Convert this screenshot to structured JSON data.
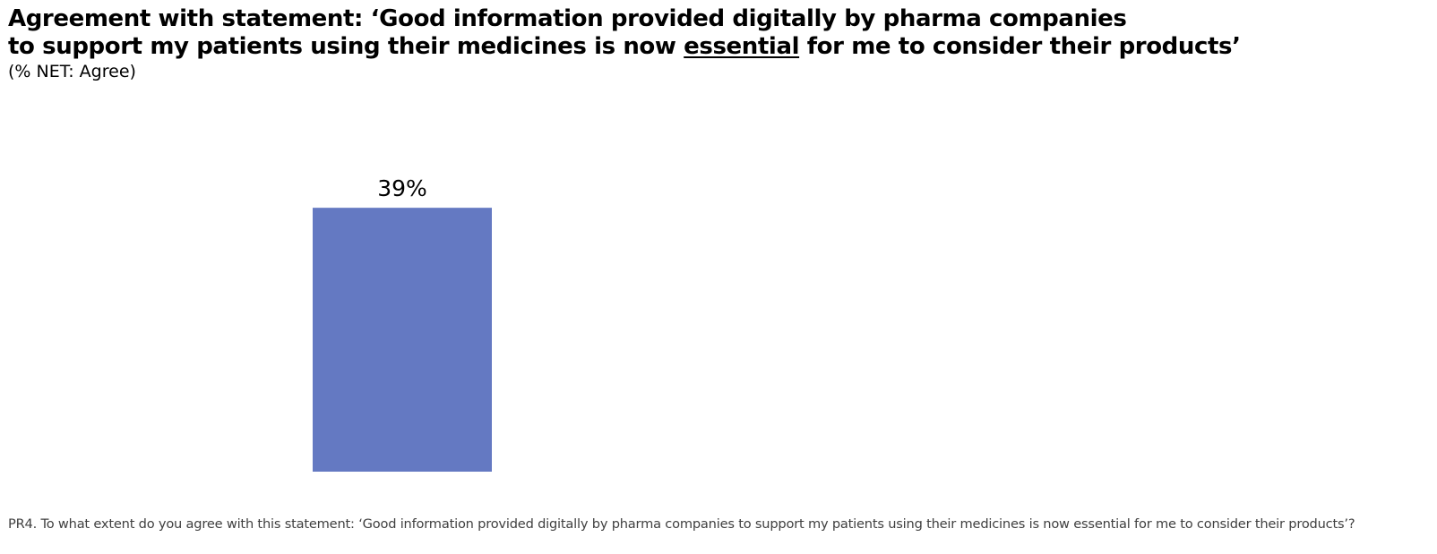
{
  "chart_data": {
    "type": "bar",
    "title_line1": "Agreement with statement: ‘Good information provided digitally by pharma companies",
    "title_line2_before": "to support my patients using their medicines is now ",
    "title_line2_emphasis": "essential",
    "title_line2_after": " for me to consider their products’",
    "subtitle": "(% NET: Agree)",
    "categories": [
      ""
    ],
    "values": [
      39
    ],
    "data_labels": [
      "39%"
    ],
    "ylim": [
      0,
      100
    ],
    "grid": false,
    "legend": "none",
    "bar_color": "#6479c2",
    "footnote": "PR4. To what extent do you agree with this statement: ‘Good information provided digitally by pharma companies to support my patients using their medicines is now essential for me to consider their products’?"
  }
}
